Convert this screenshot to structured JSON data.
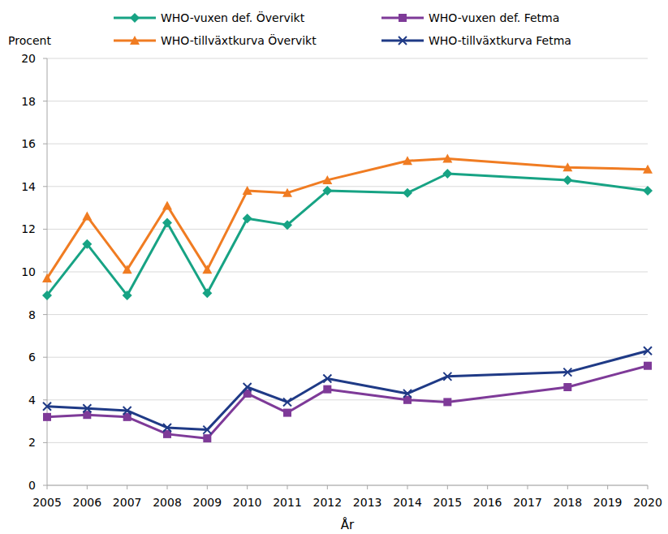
{
  "chart_data": {
    "type": "line",
    "ylabel": "Procent",
    "xlabel": "År",
    "x": [
      2005,
      2006,
      2007,
      2008,
      2009,
      2010,
      2011,
      2012,
      2014,
      2015,
      2018,
      2020
    ],
    "series": [
      {
        "name": "WHO-vuxen def. Övervikt",
        "color": "#17a384",
        "marker": "diamond",
        "values": [
          8.9,
          11.3,
          8.9,
          12.3,
          9.0,
          12.5,
          12.2,
          13.8,
          13.7,
          14.6,
          14.3,
          13.8
        ]
      },
      {
        "name": "WHO-vuxen def. Fetma",
        "color": "#7e3a98",
        "marker": "square",
        "values": [
          3.2,
          3.3,
          3.2,
          2.4,
          2.2,
          4.3,
          3.4,
          4.5,
          4.0,
          3.9,
          4.6,
          5.6
        ]
      },
      {
        "name": "WHO-tillväxtkurva Övervikt",
        "color": "#f07c22",
        "marker": "triangle",
        "values": [
          9.7,
          12.6,
          10.1,
          13.1,
          10.1,
          13.8,
          13.7,
          14.3,
          15.2,
          15.3,
          14.9,
          14.8
        ]
      },
      {
        "name": "WHO-tillväxtkurva Fetma",
        "color": "#1f3a86",
        "marker": "x",
        "values": [
          3.7,
          3.6,
          3.5,
          2.7,
          2.6,
          4.6,
          3.9,
          5.0,
          4.3,
          5.1,
          5.3,
          6.3
        ]
      }
    ],
    "xlim": [
      2005,
      2020
    ],
    "xticks": [
      2005,
      2006,
      2007,
      2008,
      2009,
      2010,
      2011,
      2012,
      2013,
      2014,
      2015,
      2016,
      2017,
      2018,
      2019,
      2020
    ],
    "ylim": [
      0,
      20
    ],
    "yticks": [
      0,
      2,
      4,
      6,
      8,
      10,
      12,
      14,
      16,
      18,
      20
    ],
    "grid": true,
    "legend": "top"
  }
}
